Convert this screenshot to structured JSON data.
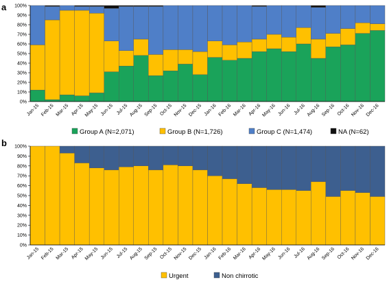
{
  "chart_data": [
    {
      "panel_label": "a",
      "type": "bar",
      "stacked": true,
      "percent": true,
      "categories": [
        "Jan-15",
        "Feb-15",
        "Mar-15",
        "Apr-15",
        "May-15",
        "Jun-15",
        "Jul-15",
        "Aug-15",
        "Sep-15",
        "Oct-15",
        "Nov-15",
        "Dec-15",
        "Jan-16",
        "Feb-16",
        "Mar-16",
        "Apr-16",
        "May-16",
        "Jun-16",
        "Jul-16",
        "Aug-16",
        "Sep-16",
        "Oct-16",
        "Nov-16",
        "Dec-16"
      ],
      "ylim": [
        0,
        100
      ],
      "yticks": [
        "0%",
        "10%",
        "20%",
        "30%",
        "40%",
        "50%",
        "60%",
        "70%",
        "80%",
        "90%",
        "100%"
      ],
      "series": [
        {
          "name": "Group A (N=2,071)",
          "color": "#1aa35a",
          "values": [
            12,
            2,
            7,
            6,
            9,
            31,
            37,
            48,
            27,
            32,
            39,
            28,
            46,
            43,
            45,
            52,
            55,
            52,
            60,
            45,
            57,
            59,
            71,
            74
          ]
        },
        {
          "name": "Group B (N=1,726)",
          "color": "#ffc000",
          "values": [
            47,
            83,
            88,
            89,
            83,
            32,
            16,
            17,
            22,
            22,
            15,
            24,
            17,
            16,
            17,
            13,
            15,
            15,
            17,
            20,
            14,
            17,
            11,
            7
          ]
        },
        {
          "name": "Group C (N=1,474)",
          "color": "#4f7fc8",
          "values": [
            41,
            14,
            5,
            4,
            7,
            34,
            46,
            34,
            50,
            46,
            46,
            48,
            37,
            41,
            38,
            34,
            30,
            33,
            23,
            33,
            29,
            24,
            18,
            19
          ]
        },
        {
          "name": "NA (N=62)",
          "color": "#111111",
          "values": [
            0,
            1,
            0,
            1,
            1,
            3,
            1,
            1,
            1,
            0,
            0,
            0,
            0,
            0,
            0,
            1,
            0,
            0,
            0,
            2,
            0,
            0,
            0,
            0
          ]
        }
      ],
      "legend_position": "bottom"
    },
    {
      "panel_label": "b",
      "type": "bar",
      "stacked": true,
      "percent": true,
      "categories": [
        "Jan-15",
        "Feb-15",
        "Mar-15",
        "Apr-15",
        "May-15",
        "Jun-15",
        "Jul-15",
        "Aug-15",
        "Sep-15",
        "Oct-15",
        "Nov-15",
        "Dec-15",
        "Jan-16",
        "Feb-16",
        "Mar-16",
        "Apr-16",
        "May-16",
        "Jun-16",
        "Jul-16",
        "Aug-16",
        "Sep-16",
        "Oct-16",
        "Nov-16",
        "Dec-16"
      ],
      "ylim": [
        0,
        100
      ],
      "yticks": [
        "0%",
        "10%",
        "20%",
        "30%",
        "40%",
        "50%",
        "60%",
        "70%",
        "80%",
        "90%",
        "100%"
      ],
      "series": [
        {
          "name": "Urgent",
          "color": "#ffc000",
          "values": [
            100,
            100,
            93,
            83,
            78,
            76,
            79,
            80,
            76,
            81,
            80,
            76,
            70,
            67,
            62,
            58,
            56,
            56,
            55,
            64,
            49,
            55,
            53,
            49
          ]
        },
        {
          "name": "Non chirrotic",
          "color": "#3d5f8f",
          "values": [
            0,
            0,
            7,
            17,
            22,
            24,
            21,
            20,
            24,
            19,
            20,
            24,
            30,
            33,
            38,
            42,
            44,
            44,
            45,
            36,
            51,
            45,
            47,
            51
          ]
        }
      ],
      "legend_position": "bottom"
    }
  ]
}
